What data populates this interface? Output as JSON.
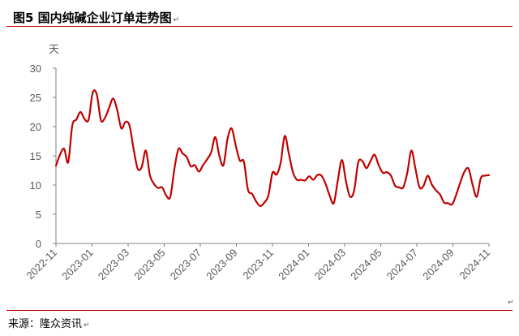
{
  "header": {
    "title": "图5  国内纯碱企业订单走势图",
    "para_mark": "↵"
  },
  "footer": {
    "source": "来源：隆众资讯",
    "para_mark": "↵"
  },
  "end_mark": "↵",
  "colors": {
    "accent": "#c00000",
    "line": "#c00000",
    "axis": "#808080",
    "text": "#595959"
  },
  "chart_data": {
    "type": "line",
    "ylabel": "天",
    "ylim": [
      0,
      30
    ],
    "yticks": [
      0,
      5,
      10,
      15,
      20,
      25,
      30
    ],
    "grid": false,
    "legend": "none",
    "xticks": [
      "2022-11",
      "2023-01",
      "2023-03",
      "2023-05",
      "2023-07",
      "2023-09",
      "2023-11",
      "2024-01",
      "2024-03",
      "2024-05",
      "2024-07",
      "2024-09",
      "2024-11"
    ],
    "series": [
      {
        "values": [
          13.3,
          15.2,
          16.2,
          13.9,
          20.2,
          21.2,
          22.5,
          21.3,
          21.2,
          25.8,
          25.5,
          21.1,
          21.5,
          23.2,
          24.8,
          22.8,
          19.7,
          20.8,
          20.2,
          16.2,
          12.8,
          13.1,
          15.9,
          11.7,
          10.2,
          9.5,
          9.6,
          8.2,
          8.0,
          12.8,
          16.2,
          15.4,
          14.8,
          13.2,
          13.4,
          12.3,
          13.4,
          14.4,
          15.6,
          18.2,
          15.0,
          13.4,
          17.9,
          19.7,
          16.8,
          14.2,
          14.0,
          9.2,
          8.5,
          7.2,
          6.4,
          7.0,
          8.2,
          12.1,
          11.8,
          13.8,
          18.4,
          15.4,
          12.2,
          10.9,
          10.9,
          10.8,
          11.5,
          10.9,
          11.7,
          11.6,
          10.2,
          8.2,
          6.9,
          10.8,
          14.3,
          10.6,
          8.0,
          9.1,
          13.9,
          14.1,
          12.9,
          14.1,
          15.2,
          13.4,
          12.1,
          12.2,
          11.6,
          9.9,
          9.6,
          9.6,
          12.1,
          15.9,
          12.8,
          9.6,
          9.9,
          11.6,
          10.1,
          9.1,
          8.4,
          7.0,
          6.9,
          6.7,
          8.4,
          10.5,
          12.3,
          12.8,
          10.0,
          8.0,
          11.2,
          11.6,
          11.7
        ]
      }
    ]
  }
}
